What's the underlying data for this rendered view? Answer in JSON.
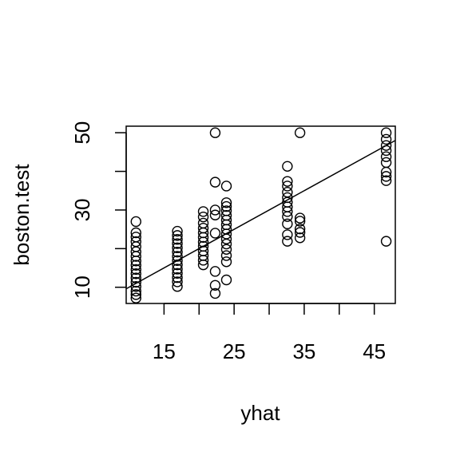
{
  "chart_data": {
    "type": "scatter",
    "xlabel": "yhat",
    "ylabel": "boston.test",
    "xlim": [
      9.6,
      48.0
    ],
    "ylim": [
      5.8,
      51.7
    ],
    "xticks": [
      15,
      20,
      25,
      30,
      35,
      40,
      45
    ],
    "xtick_labels": [
      "15",
      "",
      "25",
      "",
      "35",
      "",
      "45"
    ],
    "yticks": [
      10,
      20,
      30,
      40,
      50
    ],
    "ytick_labels": [
      "10",
      "",
      "30",
      "",
      "50"
    ],
    "grid": false,
    "colors": {
      "points": "#000000",
      "line": "#000000"
    },
    "reference_line": {
      "slope": 1,
      "intercept": 0
    },
    "points": [
      [
        11.0,
        7.2
      ],
      [
        11.0,
        8.1
      ],
      [
        11.0,
        9.0
      ],
      [
        11.0,
        10.2
      ],
      [
        11.0,
        11.3
      ],
      [
        11.0,
        12.4
      ],
      [
        11.0,
        13.5
      ],
      [
        11.0,
        14.6
      ],
      [
        11.0,
        15.7
      ],
      [
        11.0,
        16.8
      ],
      [
        11.0,
        18.0
      ],
      [
        11.0,
        19.2
      ],
      [
        11.0,
        20.5
      ],
      [
        11.0,
        21.8
      ],
      [
        11.0,
        23.0
      ],
      [
        11.0,
        24.1
      ],
      [
        11.0,
        27.0
      ],
      [
        16.9,
        10.2
      ],
      [
        16.9,
        11.4
      ],
      [
        16.9,
        12.5
      ],
      [
        16.9,
        13.6
      ],
      [
        16.9,
        14.7
      ],
      [
        16.9,
        15.8
      ],
      [
        16.9,
        16.9
      ],
      [
        16.9,
        18.0
      ],
      [
        16.9,
        19.1
      ],
      [
        16.9,
        20.2
      ],
      [
        16.9,
        21.3
      ],
      [
        16.9,
        22.4
      ],
      [
        16.9,
        23.4
      ],
      [
        16.9,
        24.5
      ],
      [
        20.6,
        15.8
      ],
      [
        20.6,
        17.0
      ],
      [
        20.6,
        18.2
      ],
      [
        20.6,
        19.4
      ],
      [
        20.6,
        20.6
      ],
      [
        20.6,
        21.7
      ],
      [
        20.6,
        22.9
      ],
      [
        20.6,
        24.1
      ],
      [
        20.6,
        25.3
      ],
      [
        20.6,
        26.6
      ],
      [
        20.6,
        28.2
      ],
      [
        20.6,
        29.6
      ],
      [
        22.3,
        8.4
      ],
      [
        22.3,
        10.5
      ],
      [
        22.3,
        14.1
      ],
      [
        22.3,
        24.0
      ],
      [
        22.3,
        28.7
      ],
      [
        22.3,
        30.0
      ],
      [
        22.3,
        37.2
      ],
      [
        22.3,
        50.0
      ],
      [
        23.9,
        11.9
      ],
      [
        23.9,
        16.6
      ],
      [
        23.9,
        18.2
      ],
      [
        23.9,
        19.8
      ],
      [
        23.9,
        21.2
      ],
      [
        23.9,
        22.5
      ],
      [
        23.9,
        23.8
      ],
      [
        23.9,
        25.0
      ],
      [
        23.9,
        26.2
      ],
      [
        23.9,
        27.4
      ],
      [
        23.9,
        28.6
      ],
      [
        23.9,
        29.8
      ],
      [
        23.9,
        30.9
      ],
      [
        23.9,
        31.9
      ],
      [
        23.9,
        36.2
      ],
      [
        32.6,
        21.9
      ],
      [
        32.6,
        23.6
      ],
      [
        32.6,
        26.4
      ],
      [
        32.6,
        28.3
      ],
      [
        32.6,
        29.6
      ],
      [
        32.6,
        30.8
      ],
      [
        32.6,
        32.0
      ],
      [
        32.6,
        33.2
      ],
      [
        32.6,
        34.6
      ],
      [
        32.6,
        36.2
      ],
      [
        32.6,
        37.4
      ],
      [
        32.6,
        41.3
      ],
      [
        34.4,
        22.8
      ],
      [
        34.4,
        24.2
      ],
      [
        34.4,
        25.1
      ],
      [
        34.4,
        27.1
      ],
      [
        34.4,
        27.9
      ],
      [
        34.4,
        50.0
      ],
      [
        46.7,
        21.9
      ],
      [
        46.7,
        37.6
      ],
      [
        46.7,
        38.7
      ],
      [
        46.7,
        39.8
      ],
      [
        46.7,
        42.3
      ],
      [
        46.7,
        43.8
      ],
      [
        46.7,
        45.4
      ],
      [
        46.7,
        46.7
      ],
      [
        46.7,
        48.3
      ],
      [
        46.7,
        50.0
      ]
    ]
  }
}
